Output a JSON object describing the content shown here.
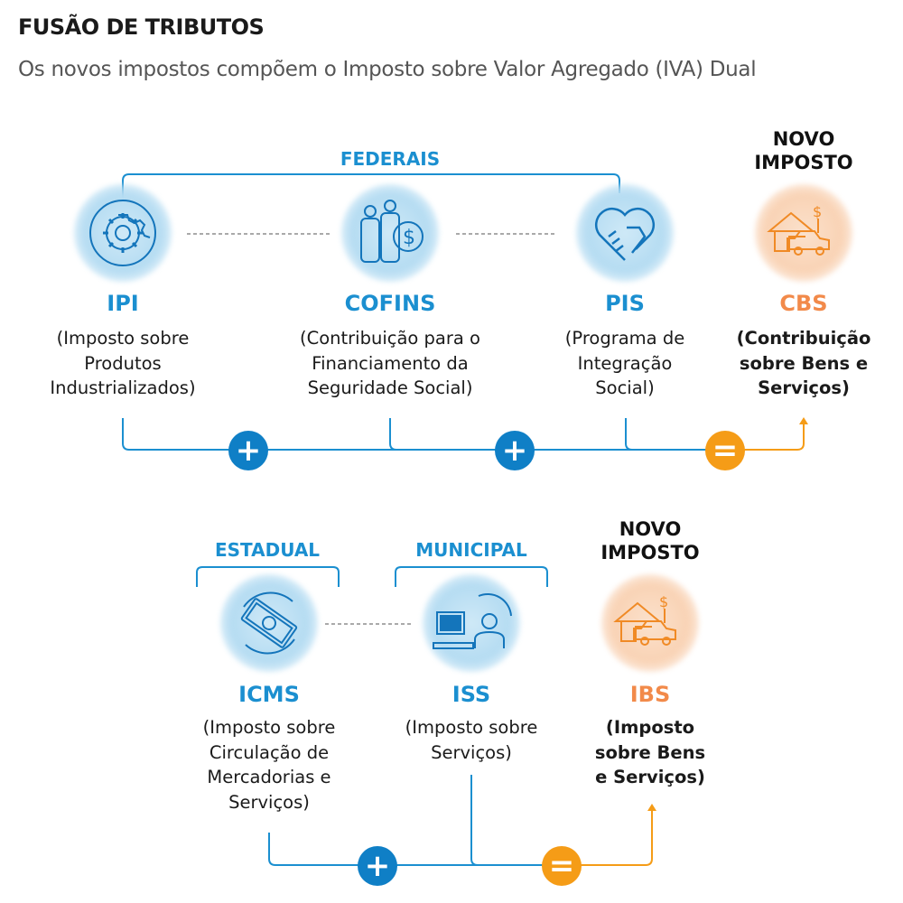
{
  "title": "FUSÃO DE TRIBUTOS",
  "subtitle": "Os novos impostos compõem o Imposto sobre Valor Agregado (IVA) Dual",
  "colors": {
    "blue": "#1b8fd0",
    "operator_blue": "#0f7fc6",
    "orange": "#f59c17",
    "orange_text": "#f28a4a"
  },
  "federal": {
    "group_label": "FEDERAIS",
    "taxes": [
      {
        "name": "IPI",
        "icon": "gear-cycle-icon",
        "desc": [
          "(Imposto sobre",
          "Produtos",
          "Industrializados)"
        ]
      },
      {
        "name": "COFINS",
        "icon": "people-money-icon",
        "desc": [
          "(Contribuição para o",
          "Financiamento da",
          "Seguridade Social)"
        ]
      },
      {
        "name": "PIS",
        "icon": "handshake-heart-icon",
        "desc": [
          "(Programa de",
          "Integração",
          "Social)"
        ]
      }
    ],
    "new_label": [
      "NOVO",
      "IMPOSTO"
    ],
    "new_tax": {
      "name": "CBS",
      "icon": "house-car-money-icon",
      "desc": [
        "(Contribuição",
        "sobre Bens e",
        "Serviços)"
      ]
    },
    "operators": [
      "+",
      "+",
      "="
    ]
  },
  "subnational": {
    "state_label": "ESTADUAL",
    "municipal_label": "MUNICIPAL",
    "taxes": [
      {
        "name": "ICMS",
        "icon": "money-bill-cycle-icon",
        "desc": [
          "(Imposto sobre",
          "Circulação de",
          "Mercadorias e",
          "Serviços)"
        ]
      },
      {
        "name": "ISS",
        "icon": "worker-computer-icon",
        "desc": [
          "(Imposto sobre",
          "Serviços)"
        ]
      }
    ],
    "new_label": [
      "NOVO",
      "IMPOSTO"
    ],
    "new_tax": {
      "name": "IBS",
      "icon": "house-car-money-icon",
      "desc": [
        "(Imposto",
        "sobre Bens",
        "e Serviços)"
      ]
    },
    "operators": [
      "+",
      "="
    ]
  }
}
